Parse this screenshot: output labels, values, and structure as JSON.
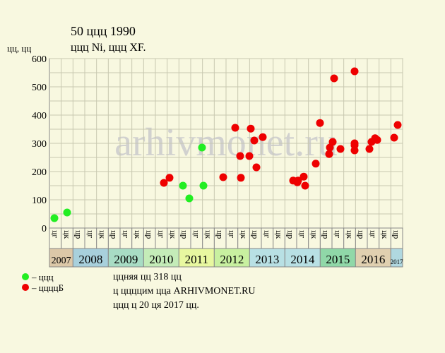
{
  "chart_data": {
    "type": "scatter",
    "title": "50 ццц 1990",
    "subtitle": "ццц Ni, ццц XF.",
    "y_label": "цц, цц",
    "watermark": "arhivmonet.ru",
    "xlim": [
      0,
      30
    ],
    "ylim": [
      0,
      600
    ],
    "yticks": [
      0,
      100,
      200,
      300,
      400,
      500,
      600
    ],
    "ygrid": [
      0,
      50,
      100,
      150,
      200,
      250,
      300,
      350,
      400,
      450,
      500,
      550,
      600
    ],
    "columns": [
      "цг",
      "цк",
      "цр",
      "цг",
      "цк",
      "цр",
      "цг",
      "цк",
      "цр",
      "цг",
      "цк",
      "цр",
      "цг",
      "цк",
      "цр",
      "цг",
      "цк",
      "цр",
      "цг",
      "цк",
      "цр",
      "цг",
      "цк",
      "цр",
      "цг",
      "цк",
      "цр",
      "цг",
      "цк",
      "цр"
    ],
    "years": [
      {
        "label": "2007",
        "span": 2,
        "color": "#dcc8a8"
      },
      {
        "label": "2008",
        "span": 3,
        "color": "#a8d0dc"
      },
      {
        "label": "2009",
        "span": 3,
        "color": "#a8dcc4"
      },
      {
        "label": "2010",
        "span": 3,
        "color": "#c4ecb8"
      },
      {
        "label": "2011",
        "span": 3,
        "color": "#e8f8a0"
      },
      {
        "label": "2012",
        "span": 3,
        "color": "#c8f0a0"
      },
      {
        "label": "2013",
        "span": 3,
        "color": "#b8e0e4"
      },
      {
        "label": "2014",
        "span": 3,
        "color": "#b8e0e4"
      },
      {
        "label": "2015",
        "span": 3,
        "color": "#90d8a8"
      },
      {
        "label": "2016",
        "span": 3,
        "color": "#e0d0b0"
      },
      {
        "label": "2017",
        "span": 1,
        "color": "#b0d8e0"
      }
    ],
    "series": [
      {
        "name": "– ццц",
        "color": "#22ee22",
        "x": [
          0.42,
          1.5,
          11.34,
          11.88,
          12.96,
          13.08
        ],
        "values": [
          35,
          55,
          150,
          105,
          285,
          150
        ]
      },
      {
        "name": "– ццццБ",
        "color": "#ee0000",
        "x": [
          9.72,
          10.2,
          14.76,
          15.78,
          16.2,
          16.26,
          16.98,
          17.1,
          17.4,
          17.58,
          18.12,
          20.7,
          21.06,
          21.12,
          21.6,
          21.72,
          22.62,
          22.98,
          23.76,
          23.82,
          24.06,
          24.18,
          24.72,
          25.92,
          25.92,
          25.92,
          25.92,
          27.18,
          27.36,
          27.66,
          27.84,
          29.28,
          29.58
        ],
        "values": [
          160,
          178,
          180,
          355,
          255,
          178,
          255,
          352,
          310,
          215,
          322,
          168,
          162,
          168,
          182,
          150,
          228,
          372,
          262,
          285,
          305,
          530,
          280,
          555,
          300,
          293,
          275,
          280,
          305,
          318,
          312,
          320,
          365
        ]
      }
    ],
    "notes": [
      "ццняя цц 318 цц",
      "ц ццццим цца ARHIVMONET.RU",
      "ццц ц 20 ця 2017 цц."
    ]
  }
}
